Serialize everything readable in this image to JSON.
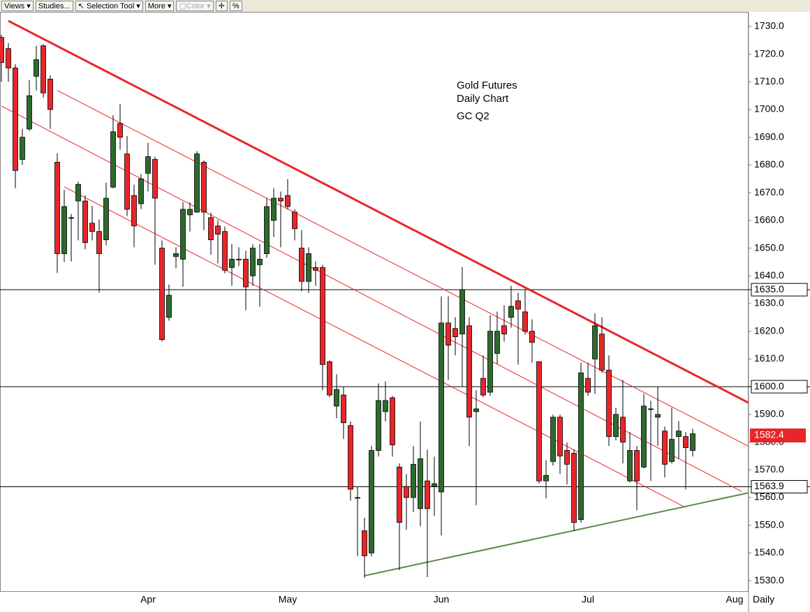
{
  "toolbar": {
    "buttons": [
      "Views",
      "Studies...",
      "Selection Tool",
      "More",
      "Color",
      "%"
    ]
  },
  "chart_data": {
    "type": "candlestick",
    "annotation": [
      "Gold Futures",
      "Daily Chart",
      "GC Q2"
    ],
    "period": "Daily",
    "categories": [
      null,
      null,
      null,
      null,
      null,
      null,
      null,
      null,
      null,
      null,
      null,
      null,
      null,
      null,
      null,
      null,
      null,
      null,
      null,
      null,
      null,
      "Apr",
      null,
      null,
      null,
      null,
      null,
      null,
      null,
      null,
      null,
      null,
      null,
      null,
      null,
      null,
      null,
      null,
      null,
      null,
      null,
      "May",
      null,
      null,
      null,
      null,
      null,
      null,
      null,
      null,
      null,
      null,
      null,
      null,
      null,
      null,
      null,
      null,
      null,
      null,
      null,
      null,
      null,
      "Jun",
      null,
      null,
      null,
      null,
      null,
      null,
      null,
      null,
      null,
      null,
      null,
      null,
      null,
      null,
      null,
      null,
      null,
      null,
      null,
      null,
      "Jul",
      null,
      null,
      null,
      null,
      null,
      null,
      null,
      null,
      null,
      null,
      null,
      null,
      null,
      null,
      null,
      null,
      null,
      null,
      null,
      null,
      "Aug",
      null
    ],
    "open": [
      1726,
      1722,
      1715,
      1682,
      1693,
      1712,
      1723,
      1711,
      1681,
      1648,
      1661,
      1667,
      1667,
      1659,
      1656,
      1653,
      1672,
      1695,
      1684,
      1669,
      1666,
      1677,
      1682,
      1650,
      1625,
      1647,
      1646,
      1662,
      1663,
      1681,
      1661,
      1658,
      1656,
      1643,
      1646,
      1646,
      1640,
      1644,
      1648,
      1660,
      1668,
      1669,
      1663,
      1650,
      1638,
      1643,
      1643,
      1609,
      1593,
      1597,
      1586,
      1560,
      1548,
      1540,
      1577,
      1591,
      1596,
      1571,
      1564,
      1560,
      1556,
      1566,
      1564,
      1562,
      1623,
      1621,
      1619,
      1622,
      1591,
      1603,
      1598,
      1612,
      1622,
      1625,
      1631,
      1627,
      1620,
      1609,
      1566,
      1573,
      1589,
      1577,
      1576,
      1552,
      1603,
      1610,
      1619,
      1606,
      1582,
      1589,
      1566,
      1577,
      1571,
      1592,
      1589,
      1584,
      1573,
      1582,
      1582,
      1577,
      null,
      null,
      null,
      null,
      null,
      null,
      null
    ],
    "high": [
      1727,
      1724,
      1716.4,
      1693,
      1710.6,
      1723,
      1723.6,
      1712.4,
      1684.2,
      1671,
      1662.3,
      1674,
      1669.1,
      1665.3,
      1660.3,
      1673.6,
      1698,
      1702,
      1690.5,
      1672.9,
      1676.7,
      1688,
      1683,
      1652.8,
      1636.9,
      1650.3,
      1666.6,
      1666.6,
      1685,
      1681.7,
      1662.8,
      1660.1,
      1657.8,
      1651.5,
      1650.3,
      1649,
      1651.5,
      1651.5,
      1667.9,
      1671.6,
      1670.4,
      1674.9,
      1664.1,
      1656.5,
      1650.3,
      1645.2,
      1644,
      1609.5,
      1604.5,
      1599.9,
      1587.4,
      1564,
      1552.7,
      1578.6,
      1601.2,
      1601.9,
      1596.7,
      1572.3,
      1568.5,
      1578.6,
      1587.4,
      1577.3,
      1574.8,
      1632.6,
      1632.6,
      1625.1,
      1643.2,
      1625.1,
      1598.7,
      1611.3,
      1625.8,
      1627.1,
      1629.4,
      1636.4,
      1633.9,
      1635.2,
      1624.3,
      1609.2,
      1573.5,
      1589.9,
      1589.9,
      1579.8,
      1577.3,
      1608.7,
      1608.7,
      1626.4,
      1625.1,
      1611.3,
      1592.4,
      1602.5,
      1583.6,
      1578.6,
      1597.4,
      1594.9,
      1599.9,
      1585.6,
      1592.4,
      1587.6,
      1583.6,
      1584.8,
      null,
      null,
      null,
      null,
      null,
      null,
      null
    ],
    "low": [
      1710,
      1710,
      1671.6,
      1680,
      1692.3,
      1706.9,
      1704.3,
      1693,
      1641,
      1645,
      1645.2,
      1652.8,
      1649.5,
      1652.8,
      1634,
      1651,
      1671.6,
      1685.5,
      1661.6,
      1650.3,
      1664.1,
      1670.4,
      1644,
      1616.3,
      1623.8,
      1642.7,
      1636,
      1656,
      1662.8,
      1656.5,
      1647.7,
      1644.5,
      1640.9,
      1636.4,
      1643.5,
      1627.6,
      1636.4,
      1628.9,
      1646.5,
      1654,
      1650.3,
      1664.1,
      1652.8,
      1634.4,
      1633.9,
      1636.4,
      1598.7,
      1596.2,
      1588.6,
      1581.1,
      1558.9,
      1538.8,
      1531,
      1538.8,
      1574.8,
      1587.4,
      1574.8,
      1533.8,
      1548.4,
      1554.7,
      1549.6,
      1531.3,
      1553.4,
      1546.3,
      1602.5,
      1611.3,
      1599.9,
      1578.6,
      1557.2,
      1596.2,
      1596.7,
      1608.2,
      1616.3,
      1621.3,
      1608,
      1618.8,
      1608.7,
      1565.2,
      1559.7,
      1571.5,
      1568.5,
      1564.7,
      1547.9,
      1550.9,
      1596.7,
      1597.4,
      1605,
      1578.6,
      1580.6,
      1572.3,
      1565.5,
      1555.4,
      1570.5,
      1566,
      1578.6,
      1567.2,
      1572.3,
      1574,
      1562.9,
      1574.8,
      null,
      null,
      null,
      null,
      null,
      null,
      null
    ],
    "close": [
      1717,
      1715,
      1678,
      1690,
      1705,
      1718,
      1706,
      1700,
      1648,
      1665,
      1661,
      1673,
      1652,
      1656,
      1648,
      1668,
      1692,
      1690,
      1664,
      1658,
      1675,
      1683,
      1668,
      1617,
      1633,
      1648,
      1664,
      1664,
      1684,
      1663,
      1653,
      1655,
      1642,
      1646,
      1646,
      1636,
      1650,
      1646,
      1665,
      1668,
      1667,
      1665,
      1657,
      1638,
      1648,
      1642,
      1608,
      1597,
      1599,
      1587,
      1563,
      1560,
      1539,
      1577,
      1595,
      1595,
      1579,
      1551,
      1560,
      1572,
      1574,
      1556,
      1565,
      1623,
      1615,
      1618,
      1635,
      1589,
      1592,
      1597,
      1620,
      1620,
      1619,
      1629,
      1628,
      1620,
      1616,
      1566,
      1568,
      1589,
      1575,
      1572,
      1551,
      1605,
      1598,
      1622,
      1606,
      1582,
      1590,
      1580,
      1577,
      1566,
      1593,
      1592,
      1590,
      1572,
      1581,
      1584,
      1578,
      1583,
      null,
      null,
      null,
      null,
      null,
      null,
      null
    ],
    "up_color": "#2e6a2e",
    "down_color": "#e8262a",
    "xlim": [
      -0.2,
      107
    ],
    "ylim": [
      1526,
      1735
    ],
    "yticks": [
      {
        "value": 1530,
        "label": "1530.0"
      },
      {
        "value": 1540,
        "label": "1540.0"
      },
      {
        "value": 1550,
        "label": "1550.0"
      },
      {
        "value": 1560,
        "label": "1560.0"
      },
      {
        "value": 1570,
        "label": "1570.0"
      },
      {
        "value": 1580,
        "label": "1580.0"
      },
      {
        "value": 1590,
        "label": "1590.0"
      },
      {
        "value": 1600,
        "label": "1600.0"
      },
      {
        "value": 1610,
        "label": "1610.0"
      },
      {
        "value": 1620,
        "label": "1620.0"
      },
      {
        "value": 1630,
        "label": "1630.0"
      },
      {
        "value": 1640,
        "label": "1640.0"
      },
      {
        "value": 1650,
        "label": "1650.0"
      },
      {
        "value": 1660,
        "label": "1660.0"
      },
      {
        "value": 1670,
        "label": "1670.0"
      },
      {
        "value": 1680,
        "label": "1680.0"
      },
      {
        "value": 1690,
        "label": "1690.0"
      },
      {
        "value": 1700,
        "label": "1700.0"
      },
      {
        "value": 1710,
        "label": "1710.0"
      },
      {
        "value": 1720,
        "label": "1720.0"
      },
      {
        "value": 1730,
        "label": "1730.0"
      }
    ],
    "hlines": [
      {
        "value": 1635,
        "label": "1635.0"
      },
      {
        "value": 1600,
        "label": "1600.0"
      },
      {
        "value": 1563.9,
        "label": "1563.9"
      }
    ],
    "last_price": {
      "value": 1582.4,
      "label": "1582.4",
      "color": "#e8262a"
    },
    "trendlines": [
      {
        "x": [
          1,
          107
        ],
        "y": [
          1732,
          1594.2
        ],
        "color": "#e8262a",
        "width": 3
      },
      {
        "x": [
          8,
          107
        ],
        "y": [
          1706.9,
          1578.5
        ],
        "color": "#e8262a",
        "width": 1
      },
      {
        "x": [
          0,
          106
        ],
        "y": [
          1701.3,
          1562.2
        ],
        "color": "#e8262a",
        "width": 1
      },
      {
        "x": [
          9,
          98
        ],
        "y": [
          1672.1,
          1556.4
        ],
        "color": "#e8262a",
        "width": 1
      },
      {
        "x": [
          52,
          107
        ],
        "y": [
          1531.8,
          1561.7
        ],
        "color": "#5a8a4a",
        "width": 2
      }
    ]
  }
}
